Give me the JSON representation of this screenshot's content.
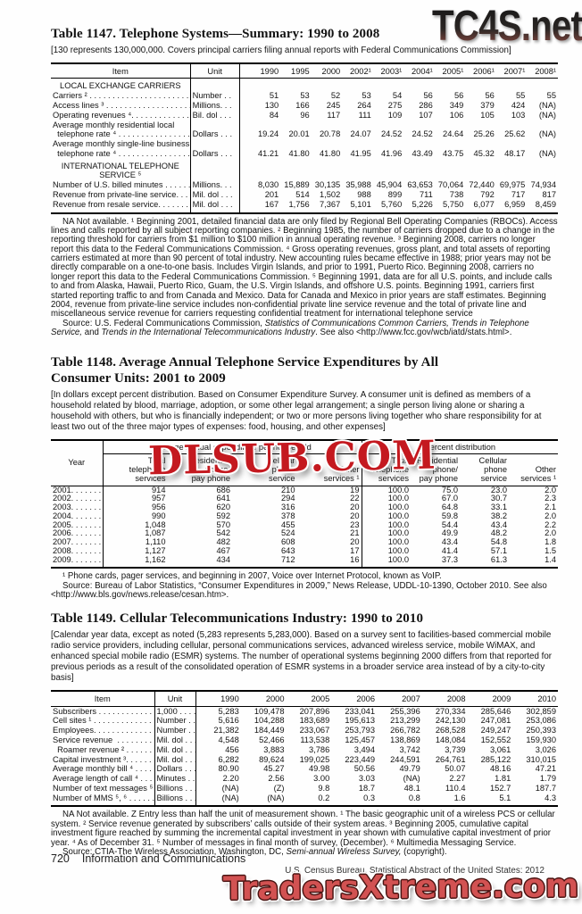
{
  "colors": {
    "ink": "#131313",
    "paper": "#fefefe",
    "watermark_mid_red": "#c4191f",
    "watermark_bottom_red": "#d25252"
  },
  "watermarks": {
    "top": "TC4S.net",
    "middle": "DLSUB.COM",
    "bottom": "TradersXtreme.com"
  },
  "page_footer": {
    "page_number": "720",
    "section": "Information and Communications",
    "census_line": "U.S. Census Bureau, Statistical Abstract of the United States: 2012"
  },
  "t1147": {
    "title": "Table 1147. Telephone Systems—Summary: 1990 to 2008",
    "note": "[130 represents 130,000,000. Covers principal carriers filing annual reports with Federal Communications Commission]",
    "columns": [
      "Item",
      "Unit",
      "1990",
      "1995",
      "2000",
      "2002¹",
      "2003¹",
      "2004¹",
      "2005¹",
      "2006¹",
      "2007¹",
      "2008¹"
    ],
    "rows": [
      {
        "section": "LOCAL EXCHANGE CARRIERS"
      },
      {
        "label": "Carriers ² . . . . . . . . . . . . . . . . . . . . . . . .",
        "unit": "Number . .",
        "values": [
          "51",
          "53",
          "52",
          "53",
          "54",
          "56",
          "56",
          "56",
          "55",
          "55"
        ]
      },
      {
        "label": "Access lines ³ . . . . . . . . . . . . . . . . . . . .",
        "unit": "Millions. . .",
        "values": [
          "130",
          "166",
          "245",
          "264",
          "275",
          "286",
          "349",
          "379",
          "424",
          "(NA)"
        ]
      },
      {
        "label": "Operating revenues ⁴. . . . . . . . . . . . . . .",
        "unit": "Bil. dol . . .",
        "values": [
          "84",
          "96",
          "117",
          "111",
          "109",
          "107",
          "106",
          "105",
          "103",
          "(NA)"
        ]
      },
      {
        "label": "Average monthly residential local\n  telephone rate ⁴ . . . . . . . . . . . . . . . . .",
        "unit": "Dollars . . .",
        "values": [
          "19.24",
          "20.01",
          "20.78",
          "24.07",
          "24.52",
          "24.52",
          "24.64",
          "25.26",
          "25.62",
          "(NA)"
        ]
      },
      {
        "label": "Average monthly single-line business\n  telephone rate ⁴ . . . . . . . . . . . . . . . . .",
        "unit": "Dollars . . .",
        "values": [
          "41.21",
          "41.80",
          "41.80",
          "41.95",
          "41.96",
          "43.49",
          "43.75",
          "45.32",
          "48.17",
          "(NA)"
        ]
      },
      {
        "section": "INTERNATIONAL TELEPHONE\nSERVICE ⁵",
        "pad": true
      },
      {
        "label": "Number of U.S. billed minutes . . . . . .",
        "unit": "Millions. . .",
        "values": [
          "8,030",
          "15,889",
          "30,135",
          "35,988",
          "45,904",
          "63,653",
          "70,064",
          "72,440",
          "69,975",
          "74,934"
        ]
      },
      {
        "label": "Revenue from private-line service. . .",
        "unit": "Mil. dol . . .",
        "values": [
          "201",
          "514",
          "1,502",
          "988",
          "899",
          "711",
          "738",
          "792",
          "717",
          "817"
        ]
      },
      {
        "label": "Revenue from resale service. . . . . . . .",
        "unit": "Mil. dol . . .",
        "values": [
          "167",
          "1,756",
          "7,367",
          "5,101",
          "5,760",
          "5,226",
          "5,750",
          "6,077",
          "6,959",
          "8,459"
        ]
      }
    ],
    "footnote": "NA Not available. ¹ Beginning 2001, detailed financial data are only filed by Regional Bell Operating Companies (RBOCs). Access lines and calls reported by all subject reporting companies. ² Beginning 1985, the number of carriers dropped due to a change in the reporting threshold for carriers from $1 million to $100 million in annual operating revenue. ³ Beginning 2008, carriers no longer report this data to the Federal Communications Commission. ⁴ Gross operating revenues, gross plant, and total assets of reporting carriers estimated at more than 90 percent of total industry. New accounting rules became effective in 1988; prior years may not be directly comparable on a one-to-one basis. Includes Virgin Islands, and prior to 1991, Puerto Rico. Beginning 2008, carriers no longer report this data to the Federal Communications Commission. ⁵ Beginning 1991, data are for all U.S. points, and include calls to and from Alaska,  Hawaii, Puerto Rico, Guam, the U.S. Virgin Islands,  and offshore U.S. points. Beginning 1991, carriers first started reporting traffic to and from Canada and Mexico. Data for Canada and Mexico in prior years are staff estimates. Beginning 2004, revenue from  private-line service includes non-confidential private line service revenue and the total of private line and miscellaneous service revenue for carriers requesting confidential treatment for international telephone service",
    "source_segments": [
      {
        "t": "Source: U.S. Federal Communications Commission, "
      },
      {
        "t": "Statistics of Communications Common Carriers, Trends in Telephone Service,",
        "i": true
      },
      {
        "t": " and "
      },
      {
        "t": "Trends in the International Telecommunications Industry",
        "i": true
      },
      {
        "t": ". See also <http://www.fcc.gov/wcb/iatd/stats.html>."
      }
    ]
  },
  "t1148": {
    "title": "Table 1148. Average Annual Telephone Service Expenditures by All\nConsumer Units: 2001 to 2009",
    "note": "[In dollars except percent distribution. Based on Consumer Expenditure Survey. A consumer unit is defined as members of a household related by blood, marriage, adoption, or some other legal arrangement; a single person living alone or sharing a household with others, but who is financially independent; or two or more persons living together who share responsibility for at least two out of the three major types of expenses: food, housing, and other expenses]",
    "year_label": "Year",
    "group1": "Average annual expenditure per household",
    "group2": "Percent distribution",
    "columns": [
      "Total\ntelephone\nservices",
      "Residential\nphone/\npay phone",
      "Cellular\nphone\nservice",
      "Other\nservices ¹",
      "Total\ntelephone\nservices",
      "Residential\nphone/\npay phone",
      "Cellular\nphone\nservice",
      "Other\nservices ¹"
    ],
    "rows": [
      {
        "y": "2001. . . . . . . . .",
        "v": [
          "914",
          "686",
          "210",
          "19",
          "100.0",
          "75.0",
          "23.0",
          "2.0"
        ]
      },
      {
        "y": "2002. . . . . . . . .",
        "v": [
          "957",
          "641",
          "294",
          "22",
          "100.0",
          "67.0",
          "30.7",
          "2.3"
        ]
      },
      {
        "y": "2003. . . . . . . . .",
        "v": [
          "956",
          "620",
          "316",
          "20",
          "100.0",
          "64.8",
          "33.1",
          "2.1"
        ]
      },
      {
        "y": "2004. . . . . . . . .",
        "v": [
          "990",
          "592",
          "378",
          "20",
          "100.0",
          "59.8",
          "38.2",
          "2.0"
        ]
      },
      {
        "y": "2005. . . . . . . . .",
        "v": [
          "1,048",
          "570",
          "455",
          "23",
          "100.0",
          "54.4",
          "43.4",
          "2.2"
        ]
      },
      {
        "y": "2006. . . . . . . . .",
        "v": [
          "1,087",
          "542",
          "524",
          "21",
          "100.0",
          "49.9",
          "48.2",
          "2.0"
        ]
      },
      {
        "y": "2007. . . . . . . . .",
        "v": [
          "1,110",
          "482",
          "608",
          "20",
          "100.0",
          "43.4",
          "54.8",
          "1.8"
        ]
      },
      {
        "y": "2008. . . . . . . . .",
        "v": [
          "1,127",
          "467",
          "643",
          "17",
          "100.0",
          "41.4",
          "57.1",
          "1.5"
        ]
      },
      {
        "y": "2009. . . . . . . . .",
        "v": [
          "1,162",
          "434",
          "712",
          "16",
          "100.0",
          "37.3",
          "61.3",
          "1.4"
        ]
      }
    ],
    "footnote": "¹ Phone cards, pager services, and beginning in 2007, Voice over Internet Protocol, known as VoIP.",
    "source": "Source: Bureau of Labor Statistics, “Consumer Expenditures in 2009,” News Release, UDDL-10-1390, October 2010. See also <http://www.bls.gov/news.release/cesan.htm>."
  },
  "t1149": {
    "title": "Table 1149. Cellular Telecommunications Industry: 1990 to 2010",
    "note": "[Calendar year data, except as noted (5,283 represents 5,283,000). Based on a survey sent to facilities-based commercial mobile radio service providers, including cellular, personal communications services, advanced wireless service, mobile WiMAX, and enhanced special mobile radio (ESMR) systems. The number of operational systems beginning 2000 differs from that reported for previous periods as a  result of the consolidated operation of ESMR systems in a broader service area instead of by a city-to-city basis]",
    "columns": [
      "Item",
      "Unit",
      "1990",
      "2000",
      "2005",
      "2006",
      "2007",
      "2008",
      "2009",
      "2010"
    ],
    "rows": [
      {
        "label": "Subscribers . . . . . . . . . . . . . . . .",
        "unit": "1,000 . . . .",
        "values": [
          "5,283",
          "109,478",
          "207,896",
          "233,041",
          "255,396",
          "270,334",
          "285,646",
          "302,859"
        ]
      },
      {
        "label": "Cell sites ¹ . . . . . . . . . . . . . . . .",
        "unit": "Number . .",
        "values": [
          "5,616",
          "104,288",
          "183,689",
          "195,613",
          "213,299",
          "242,130",
          "247,081",
          "253,086"
        ]
      },
      {
        "label": "Employees. . . . . . . . . . . . . . . .",
        "unit": "Number . .",
        "values": [
          "21,382",
          "184,449",
          "233,067",
          "253,793",
          "266,782",
          "268,528",
          "249,247",
          "250,393"
        ]
      },
      {
        "label": "Service revenue  . . . . . . . . . . .",
        "unit": "Mil. dol . . .",
        "values": [
          "4,548",
          "52,466",
          "113,538",
          "125,457",
          "138,869",
          "148,084",
          "152,552",
          "159,930"
        ]
      },
      {
        "label": "  Roamer revenue ² . . . . . . . . .",
        "unit": "Mil. dol . . .",
        "values": [
          "456",
          "3,883",
          "3,786",
          "3,494",
          "3,742",
          "3,739",
          "3,061",
          "3,026"
        ]
      },
      {
        "label": "Capital investment ³. . . . . . . . .",
        "unit": "Mil. dol . . .",
        "values": [
          "6,282",
          "89,624",
          "199,025",
          "223,449",
          "244,591",
          "264,761",
          "285,122",
          "310,015"
        ]
      },
      {
        "label": "Average monthly bill ⁴ . . . . . . .",
        "unit": "Dollars . . .",
        "values": [
          "80.90",
          "45.27",
          "49.98",
          "50.56",
          "49.79",
          "50.07",
          "48.16",
          "47.21"
        ]
      },
      {
        "label": "Average length of call ⁴ . . . . . .",
        "unit": "Minutes . .",
        "values": [
          "2.20",
          "2.56",
          "3.00",
          "3.03",
          "(NA)",
          "2.27",
          "1.81",
          "1.79"
        ]
      },
      {
        "label": "Number of text messages ⁵ . . .",
        "unit": "Billions . . .",
        "values": [
          "(NA)",
          "(Z)",
          "9.8",
          "18.7",
          "48.1",
          "110.4",
          "152.7",
          "187.7"
        ]
      },
      {
        "label": "Number of MMS ⁵, ⁶ . . . . . . . .",
        "unit": "Billions . . .",
        "values": [
          "(NA)",
          "(NA)",
          "0.2",
          "0.3",
          "0.8",
          "1.6",
          "5.1",
          "4.3"
        ]
      }
    ],
    "footnote": "NA Not available. Z Entry less than half the unit of measurement shown. ¹ The basic geographic unit of a wireless PCS or cellular system.  ² Service revenue generated by subscribers’ calls outside of their  system areas. ³ Beginning 2005, cumulative capital investment figure reached by summing the incremental capital investment in year shown with cumulative capital investment of prior year. ⁴ As of December 31. ⁵ Number of messages in final month of survey, (December). ⁶ Multimedia Messaging Service.",
    "source_segments": [
      {
        "t": "Source: CTIA-The Wireless Association, Washington, DC, "
      },
      {
        "t": "Semi-annual Wireless Survey,",
        "i": true
      },
      {
        "t": " (copyright)."
      }
    ]
  }
}
